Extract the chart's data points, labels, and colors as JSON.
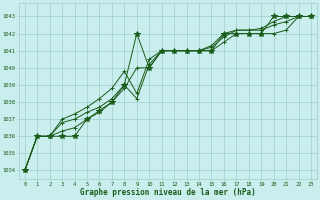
{
  "xlabel": "Graphe pression niveau de la mer (hPa)",
  "bg_color": "#caeeed",
  "grid_color": "#9dcfca",
  "line_color": "#1a5c1a",
  "text_color": "#1a5c1a",
  "ylim": [
    1033.5,
    1043.8
  ],
  "xlim": [
    -0.5,
    23.5
  ],
  "yticks": [
    1034,
    1035,
    1036,
    1037,
    1038,
    1039,
    1040,
    1041,
    1042,
    1043
  ],
  "xticks": [
    0,
    1,
    2,
    3,
    4,
    5,
    6,
    7,
    8,
    9,
    10,
    11,
    12,
    13,
    14,
    15,
    16,
    17,
    18,
    19,
    20,
    21,
    22,
    23
  ],
  "series": [
    {
      "x": [
        0,
        1,
        2,
        3,
        4,
        5,
        6,
        7,
        8,
        9,
        10,
        11,
        12,
        13,
        14,
        15,
        16,
        17,
        18,
        19,
        20,
        21,
        22,
        23
      ],
      "y": [
        1034.0,
        1036.0,
        1036.0,
        1036.0,
        1036.0,
        1037.0,
        1037.5,
        1038.0,
        1039.0,
        1042.0,
        1040.0,
        1041.0,
        1041.0,
        1041.0,
        1041.0,
        1041.0,
        1042.0,
        1042.0,
        1042.0,
        1042.0,
        1043.0,
        1043.0,
        1043.0,
        1043.0
      ],
      "marker": "*",
      "ms": 4
    },
    {
      "x": [
        0,
        1,
        2,
        3,
        4,
        5,
        6,
        7,
        8,
        9,
        10,
        11,
        12,
        13,
        14,
        15,
        16,
        17,
        18,
        19,
        20,
        21,
        22,
        23
      ],
      "y": [
        1034.0,
        1036.0,
        1036.0,
        1036.3,
        1036.5,
        1037.0,
        1037.4,
        1038.0,
        1038.8,
        1040.0,
        1040.0,
        1041.0,
        1041.0,
        1041.0,
        1041.0,
        1041.0,
        1041.5,
        1042.0,
        1042.0,
        1042.0,
        1042.0,
        1042.2,
        1043.0,
        1043.0
      ],
      "marker": "+",
      "ms": 3
    },
    {
      "x": [
        0,
        1,
        2,
        3,
        4,
        5,
        6,
        7,
        8,
        9,
        10,
        11,
        12,
        13,
        14,
        15,
        16,
        17,
        18,
        19,
        20,
        21,
        22,
        23
      ],
      "y": [
        1034.0,
        1036.0,
        1036.0,
        1036.8,
        1037.0,
        1037.4,
        1037.7,
        1038.2,
        1039.0,
        1038.2,
        1040.2,
        1041.0,
        1041.0,
        1041.0,
        1041.0,
        1041.2,
        1041.8,
        1042.2,
        1042.2,
        1042.2,
        1042.5,
        1042.7,
        1043.0,
        1043.0
      ],
      "marker": "+",
      "ms": 3
    },
    {
      "x": [
        0,
        1,
        2,
        3,
        4,
        5,
        6,
        7,
        8,
        9,
        10,
        11,
        12,
        13,
        14,
        15,
        16,
        17,
        18,
        19,
        20,
        21,
        22,
        23
      ],
      "y": [
        1034.0,
        1036.0,
        1036.0,
        1037.0,
        1037.3,
        1037.7,
        1038.2,
        1038.8,
        1039.8,
        1038.5,
        1040.5,
        1041.0,
        1041.0,
        1041.0,
        1041.0,
        1041.3,
        1042.0,
        1042.2,
        1042.2,
        1042.3,
        1042.7,
        1043.0,
        1043.0,
        1043.0
      ],
      "marker": "+",
      "ms": 3
    }
  ]
}
